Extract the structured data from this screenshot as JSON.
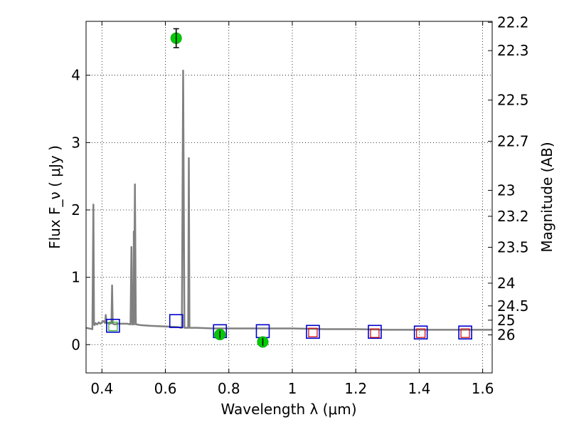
{
  "chart_data": {
    "type": "scatter",
    "xlabel": "Wavelength  λ (μm)",
    "ylabel": "Flux  F_ν  ( μJy )",
    "y2label": "Magnitude (AB)",
    "xlim": [
      0.35,
      1.63
    ],
    "ylim": [
      -0.42,
      4.8
    ],
    "x_ticks": [
      0.4,
      0.6,
      0.8,
      1.0,
      1.2,
      1.4,
      1.6
    ],
    "x_tick_labels": [
      "0.4",
      "0.6",
      "0.8",
      "1",
      "1.2",
      "1.4",
      "1.6"
    ],
    "y_ticks": [
      0,
      1,
      2,
      3,
      4
    ],
    "y_tick_labels": [
      "0",
      "1",
      "2",
      "3",
      "4"
    ],
    "mag_ticks": [
      22.2,
      22.3,
      22.5,
      22.7,
      23,
      23.2,
      23.5,
      24,
      24.5,
      25,
      26
    ],
    "mag_tick_labels": [
      "22.2",
      "22.3",
      "22.5",
      "22.7",
      "23",
      "23.2",
      "23.5",
      "24",
      "24.5",
      "25",
      "26"
    ],
    "grid": true,
    "series": [
      {
        "style": "line",
        "color": "#808080",
        "x": [
          0.35,
          0.37,
          0.373,
          0.375,
          0.377,
          0.38,
          0.385,
          0.39,
          0.395,
          0.4,
          0.405,
          0.41,
          0.412,
          0.414,
          0.416,
          0.42,
          0.425,
          0.43,
          0.432,
          0.434,
          0.436,
          0.44,
          0.45,
          0.48,
          0.49,
          0.493,
          0.496,
          0.5,
          0.5005,
          0.501,
          0.504,
          0.507,
          0.51,
          0.52,
          0.55,
          0.6,
          0.64,
          0.65,
          0.652,
          0.656,
          0.66,
          0.662,
          0.665,
          0.672,
          0.674,
          0.676,
          0.679,
          0.682,
          0.7,
          0.75,
          0.8,
          0.9,
          1.0,
          1.1,
          1.2,
          1.3,
          1.4,
          1.5,
          1.63
        ],
        "y": [
          0.25,
          0.23,
          2.08,
          0.3,
          0.29,
          0.32,
          0.3,
          0.33,
          0.31,
          0.33,
          0.35,
          0.32,
          0.44,
          0.33,
          0.32,
          0.32,
          0.31,
          0.32,
          0.88,
          0.31,
          0.31,
          0.3,
          0.31,
          0.31,
          0.3,
          1.45,
          0.3,
          0.31,
          1.68,
          0.3,
          2.38,
          0.3,
          0.3,
          0.29,
          0.28,
          0.27,
          0.26,
          0.25,
          0.25,
          4.07,
          0.25,
          0.25,
          0.25,
          0.25,
          2.77,
          0.25,
          0.25,
          0.25,
          0.25,
          0.24,
          0.24,
          0.24,
          0.24,
          0.23,
          0.23,
          0.22,
          0.22,
          0.22,
          0.22
        ]
      },
      {
        "style": "marker-square",
        "color": "#0000cc",
        "x": [
          0.435,
          0.634,
          0.772,
          0.907,
          1.065,
          1.26,
          1.405,
          1.545
        ],
        "y": [
          0.28,
          0.35,
          0.2,
          0.2,
          0.19,
          0.19,
          0.18,
          0.18
        ]
      },
      {
        "style": "marker-square-small",
        "color": "#cc0000",
        "x": [
          1.065,
          1.26,
          1.405,
          1.545
        ],
        "y": [
          0.18,
          0.17,
          0.17,
          0.17
        ]
      },
      {
        "style": "marker-square-small",
        "color": "#22aa22",
        "x": [
          0.435
        ],
        "y": [
          0.27
        ]
      },
      {
        "style": "marker-circle-errorbar",
        "color": "#00cc00",
        "x": [
          0.634,
          0.772,
          0.907
        ],
        "y": [
          4.55,
          0.15,
          0.04
        ],
        "yerr": [
          0.14,
          0.06,
          0.06
        ]
      }
    ]
  }
}
